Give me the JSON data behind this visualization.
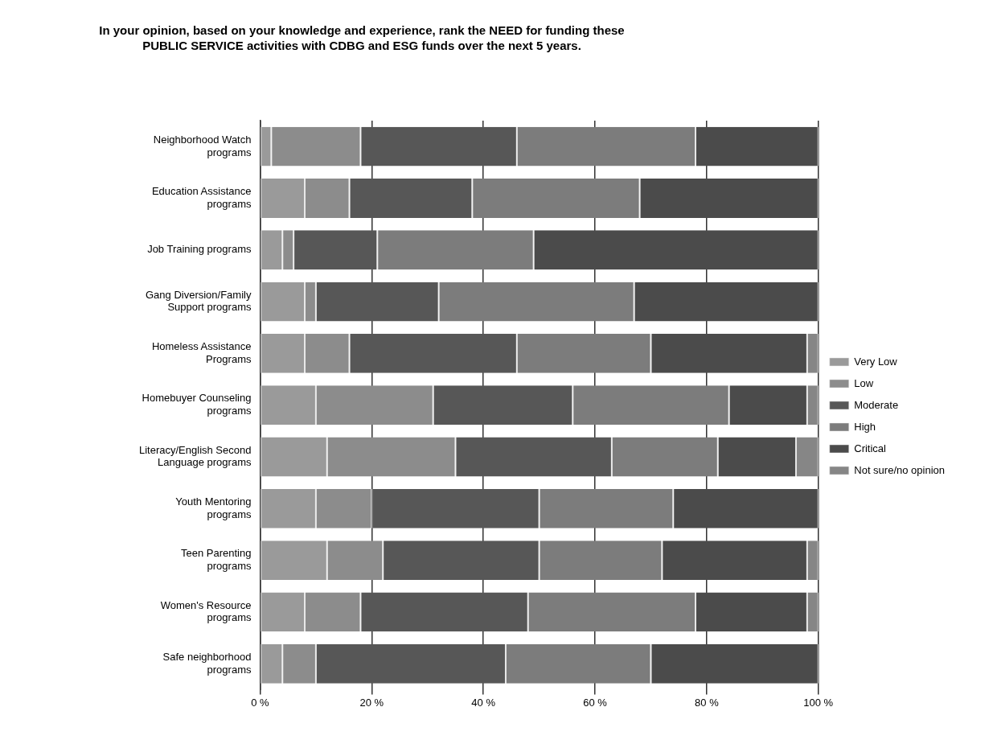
{
  "chart_data": {
    "type": "bar",
    "orientation": "horizontal",
    "stacked": true,
    "title": "In your opinion, based on your knowledge and experience, rank the NEED for funding these PUBLIC SERVICE activities with CDBG and ESG funds over the next 5 years.",
    "categories": [
      "Neighborhood Watch programs",
      "Education Assistance programs",
      "Job Training programs",
      "Gang Diversion/Family Support programs",
      "Homeless Assistance Programs",
      "Homebuyer Counseling programs",
      "Literacy/English Second Language programs",
      "Youth Mentoring programs",
      "Teen Parenting programs",
      "Women's Resource programs",
      "Safe neighborhood programs"
    ],
    "series": [
      {
        "name": "Very Low",
        "color": "#9a9a9a",
        "values": [
          2,
          8,
          4,
          8,
          8,
          10,
          12,
          10,
          12,
          8,
          4
        ]
      },
      {
        "name": "Low",
        "color": "#8c8c8c",
        "values": [
          16,
          8,
          2,
          2,
          8,
          21,
          23,
          10,
          10,
          10,
          6
        ]
      },
      {
        "name": "Moderate",
        "color": "#575757",
        "values": [
          28,
          22,
          15,
          22,
          30,
          25,
          28,
          30,
          28,
          30,
          34
        ]
      },
      {
        "name": "High",
        "color": "#7c7c7c",
        "values": [
          32,
          30,
          28,
          35,
          24,
          28,
          19,
          24,
          22,
          30,
          26
        ]
      },
      {
        "name": "Critical",
        "color": "#4b4b4b",
        "values": [
          22,
          32,
          51,
          33,
          28,
          14,
          14,
          26,
          26,
          20,
          30
        ]
      },
      {
        "name": "Not sure/no opinion",
        "color": "#868686",
        "values": [
          0,
          0,
          0,
          0,
          2,
          2,
          4,
          0,
          2,
          2,
          0
        ]
      }
    ],
    "xlim": [
      0,
      100
    ],
    "xticks": [
      {
        "value": 0,
        "label": "0 %"
      },
      {
        "value": 20,
        "label": "20 %"
      },
      {
        "value": 40,
        "label": "40 %"
      },
      {
        "value": 60,
        "label": "60 %"
      },
      {
        "value": 80,
        "label": "80 %"
      },
      {
        "value": 100,
        "label": "100 %"
      }
    ],
    "grid": "x",
    "legend": "right"
  }
}
